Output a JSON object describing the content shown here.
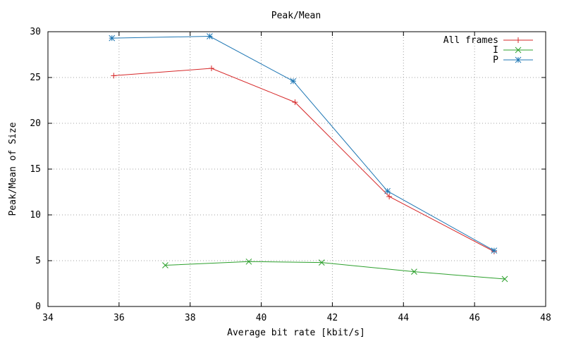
{
  "chart_data": {
    "type": "line",
    "title": "Peak/Mean",
    "xlabel": "Average bit rate [kbit/s]",
    "ylabel": "Peak/Mean of Size",
    "xlim": [
      34,
      48
    ],
    "ylim": [
      0,
      30
    ],
    "xticks": [
      34,
      36,
      38,
      40,
      42,
      44,
      46,
      48
    ],
    "yticks": [
      0,
      5,
      10,
      15,
      20,
      25,
      30
    ],
    "grid": true,
    "legend_position": "top-right",
    "series": [
      {
        "name": "All frames",
        "color": "#d62728",
        "marker": "plus",
        "points": [
          [
            35.85,
            25.2
          ],
          [
            38.6,
            26.0
          ],
          [
            40.95,
            22.3
          ],
          [
            43.6,
            12.0
          ],
          [
            46.55,
            6.0
          ]
        ]
      },
      {
        "name": "I",
        "color": "#2ca02c",
        "marker": "cross",
        "points": [
          [
            37.3,
            4.5
          ],
          [
            39.65,
            4.9
          ],
          [
            41.7,
            4.8
          ],
          [
            44.3,
            3.8
          ],
          [
            46.85,
            3.0
          ]
        ]
      },
      {
        "name": "P",
        "color": "#1f77b4",
        "marker": "star",
        "points": [
          [
            35.8,
            29.3
          ],
          [
            38.55,
            29.5
          ],
          [
            40.9,
            24.6
          ],
          [
            43.55,
            12.6
          ],
          [
            46.55,
            6.1
          ]
        ]
      }
    ]
  }
}
